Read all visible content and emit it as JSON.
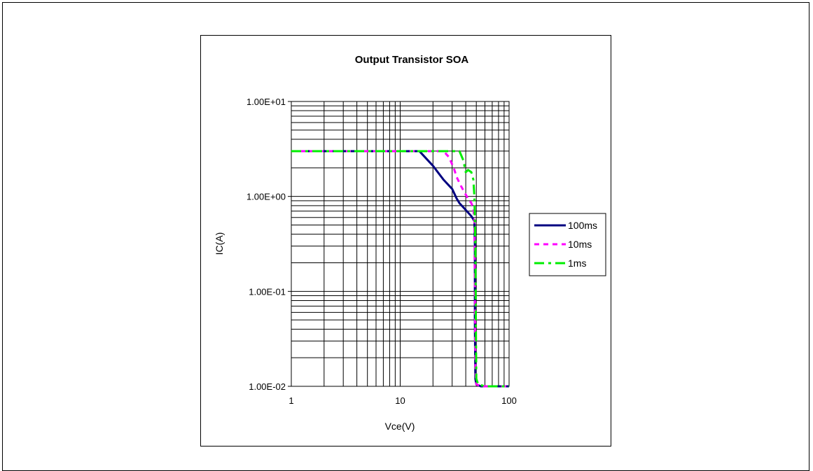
{
  "chart_data": {
    "type": "line",
    "title": "Output Transistor SOA",
    "xlabel": "Vce(V)",
    "ylabel": "IC(A)",
    "x_scale": "log",
    "y_scale": "log",
    "xlim": [
      1,
      100
    ],
    "ylim": [
      0.01,
      10
    ],
    "x_ticks": [
      "1",
      "10",
      "100"
    ],
    "y_ticks": [
      "1.00E-02",
      "1.00E-01",
      "1.00E+00",
      "1.00E+01"
    ],
    "grid": true,
    "legend_position": "right",
    "series": [
      {
        "name": "100ms",
        "color": "#000080",
        "style": "solid",
        "x": [
          1,
          15,
          20,
          25,
          30,
          33,
          35,
          40,
          45,
          48,
          48.5,
          48.5,
          49,
          50,
          55,
          60,
          100
        ],
        "y": [
          3,
          3,
          2.1,
          1.5,
          1.2,
          0.95,
          0.85,
          0.72,
          0.62,
          0.55,
          0.3,
          0.05,
          0.012,
          0.0105,
          0.01,
          0.01,
          0.01
        ]
      },
      {
        "name": "10ms",
        "color": "#ff00ff",
        "style": "dashed",
        "x": [
          1,
          25,
          28,
          31,
          33,
          36,
          39,
          42,
          45,
          47,
          48,
          48.5,
          49,
          50,
          55,
          60,
          100
        ],
        "y": [
          3,
          3,
          2.6,
          2.0,
          1.6,
          1.3,
          1.1,
          0.95,
          0.85,
          0.75,
          0.55,
          0.1,
          0.015,
          0.0105,
          0.01,
          0.01,
          0.01
        ]
      },
      {
        "name": "1ms",
        "color": "#00ee00",
        "style": "dashdot",
        "x": [
          1,
          35,
          38,
          40,
          42,
          45,
          47,
          48,
          49,
          49.5,
          50,
          52,
          60,
          100
        ],
        "y": [
          3,
          3,
          2.4,
          1.8,
          1.9,
          1.8,
          1.5,
          1.0,
          0.3,
          0.05,
          0.012,
          0.0105,
          0.01,
          0.01
        ]
      }
    ]
  }
}
